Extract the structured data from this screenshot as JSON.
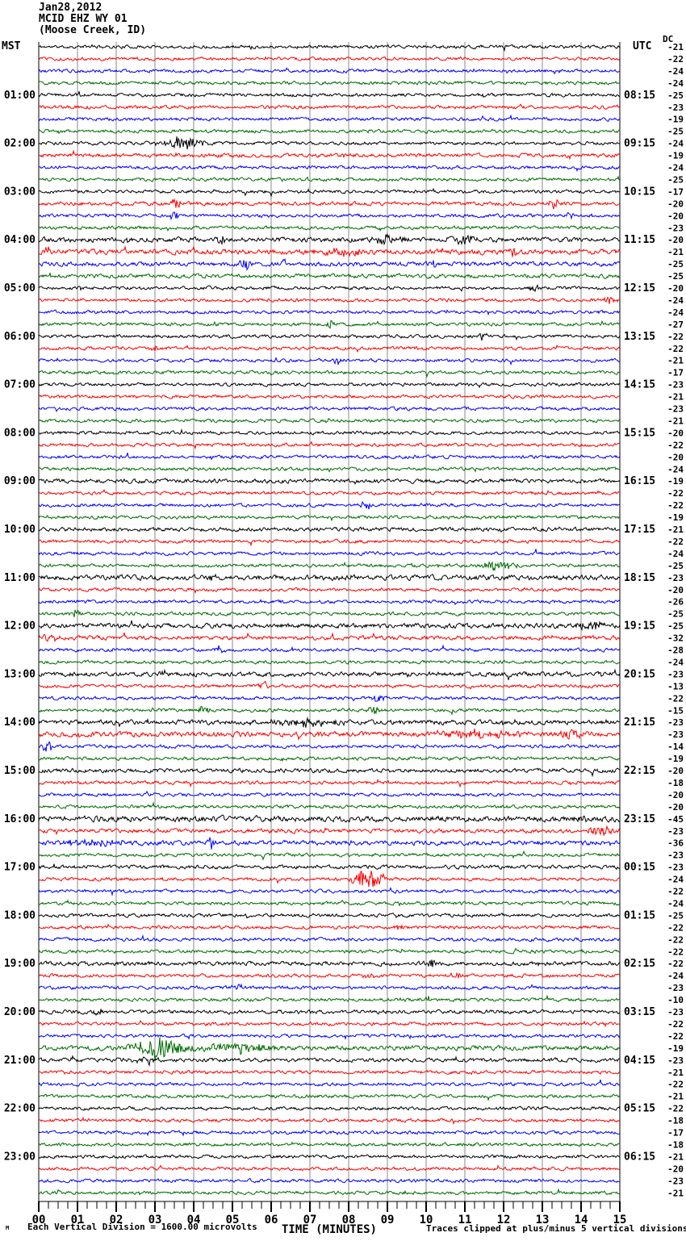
{
  "header": {
    "date": "Jan28,2012",
    "station": "MCID EHZ WY 01",
    "location": "(Moose Creek, ID)"
  },
  "axis_labels": {
    "left": "MST",
    "right": "UTC",
    "dc": "DC"
  },
  "x_axis": {
    "label": "TIME (MINUTES)",
    "ticks": [
      "00",
      "01",
      "02",
      "03",
      "04",
      "05",
      "06",
      "07",
      "08",
      "09",
      "10",
      "11",
      "12",
      "13",
      "14",
      "15"
    ]
  },
  "footer": {
    "corner_mark": "M",
    "scale_note": "Each Vertical Division = 1600.00 microvolts",
    "clip_note": "Traces clipped at plus/minus 5 vertical divisions"
  },
  "chart_data": {
    "type": "line",
    "subtype": "helicorder-seismogram",
    "title": "MCID EHZ WY 01 (Moose Creek, ID) Jan28,2012",
    "xlabel": "TIME (MINUTES)",
    "x_range": [
      0,
      15
    ],
    "rows": 96,
    "minutes_per_row": 15,
    "start_time_mst": "00:00",
    "colors_cycle": [
      "#000000",
      "#ff0000",
      "#0000ff",
      "#006c00"
    ],
    "grid_color": "#8a8a8a",
    "baseline_amp": 1.3,
    "scale_note_microvolts_per_division": 1600.0,
    "clip_divisions": 5,
    "dc_values": [
      -21,
      -22,
      -24,
      -24,
      -25,
      -23,
      -19,
      -25,
      -24,
      -19,
      -24,
      -25,
      -17,
      -20,
      -20,
      -23,
      -20,
      -21,
      -25,
      -25,
      -20,
      -24,
      -24,
      -27,
      -22,
      -22,
      -21,
      -17,
      -23,
      -21,
      -23,
      -21,
      -20,
      -22,
      -20,
      -24,
      -19,
      -22,
      -22,
      -19,
      -21,
      -22,
      -24,
      -25,
      -23,
      -20,
      -26,
      -25,
      -25,
      -32,
      -28,
      -24,
      -23,
      -13,
      -22,
      -15,
      -23,
      -23,
      -14,
      -19,
      -20,
      -18,
      -20,
      -20,
      -45,
      -23,
      -36,
      -23,
      -23,
      -24,
      -22,
      -24,
      -25,
      -22,
      -22,
      -22,
      -22,
      -24,
      -23,
      -10,
      -23,
      -22,
      -22,
      -19,
      -23,
      -21,
      -22,
      -21,
      -22,
      -18,
      -17,
      -18,
      -21,
      -20,
      -23,
      -21
    ],
    "mst_labels": [
      {
        "row": 4,
        "t": "01:00"
      },
      {
        "row": 8,
        "t": "02:00"
      },
      {
        "row": 12,
        "t": "03:00"
      },
      {
        "row": 16,
        "t": "04:00"
      },
      {
        "row": 20,
        "t": "05:00"
      },
      {
        "row": 24,
        "t": "06:00"
      },
      {
        "row": 28,
        "t": "07:00"
      },
      {
        "row": 32,
        "t": "08:00"
      },
      {
        "row": 36,
        "t": "09:00"
      },
      {
        "row": 40,
        "t": "10:00"
      },
      {
        "row": 44,
        "t": "11:00"
      },
      {
        "row": 48,
        "t": "12:00"
      },
      {
        "row": 52,
        "t": "13:00"
      },
      {
        "row": 56,
        "t": "14:00"
      },
      {
        "row": 60,
        "t": "15:00"
      },
      {
        "row": 64,
        "t": "16:00"
      },
      {
        "row": 68,
        "t": "17:00"
      },
      {
        "row": 72,
        "t": "18:00"
      },
      {
        "row": 76,
        "t": "19:00"
      },
      {
        "row": 80,
        "t": "20:00"
      },
      {
        "row": 84,
        "t": "21:00"
      },
      {
        "row": 88,
        "t": "22:00"
      },
      {
        "row": 92,
        "t": "23:00"
      }
    ],
    "utc_labels": [
      {
        "row": 4,
        "t": "08:15"
      },
      {
        "row": 8,
        "t": "09:15"
      },
      {
        "row": 12,
        "t": "10:15"
      },
      {
        "row": 16,
        "t": "11:15"
      },
      {
        "row": 20,
        "t": "12:15"
      },
      {
        "row": 24,
        "t": "13:15"
      },
      {
        "row": 28,
        "t": "14:15"
      },
      {
        "row": 32,
        "t": "15:15"
      },
      {
        "row": 36,
        "t": "16:15"
      },
      {
        "row": 40,
        "t": "17:15"
      },
      {
        "row": 44,
        "t": "18:15"
      },
      {
        "row": 48,
        "t": "19:15"
      },
      {
        "row": 52,
        "t": "20:15"
      },
      {
        "row": 56,
        "t": "21:15"
      },
      {
        "row": 60,
        "t": "22:15"
      },
      {
        "row": 64,
        "t": "23:15"
      },
      {
        "row": 68,
        "t": "00:15"
      },
      {
        "row": 72,
        "t": "01:15"
      },
      {
        "row": 76,
        "t": "02:15"
      },
      {
        "row": 80,
        "t": "03:15"
      },
      {
        "row": 84,
        "t": "04:15"
      },
      {
        "row": 88,
        "t": "05:15"
      },
      {
        "row": 92,
        "t": "06:15"
      }
    ],
    "amp_overrides": {
      "9": 1.5,
      "13": 1.5,
      "16": 1.9,
      "17": 2.0,
      "18": 1.7,
      "19": 1.6,
      "36": 1.6,
      "40": 1.5,
      "44": 2.0,
      "48": 1.8,
      "49": 1.6,
      "52": 1.8,
      "56": 1.8,
      "57": 2.0,
      "60": 1.6,
      "64": 2.2,
      "65": 1.6,
      "66": 1.8,
      "68": 1.5,
      "72": 1.4,
      "76": 1.6,
      "80": 1.5,
      "83": 1.8,
      "84": 1.5
    },
    "events": [
      [
        8,
        3.05,
        4.4,
        8
      ],
      [
        13,
        3.35,
        3.75,
        5
      ],
      [
        13,
        13.1,
        13.5,
        5
      ],
      [
        14,
        3.35,
        3.65,
        6
      ],
      [
        14,
        13.55,
        13.85,
        4
      ],
      [
        16,
        4.55,
        4.85,
        6
      ],
      [
        16,
        8.3,
        9.7,
        4.5
      ],
      [
        16,
        10.3,
        11.7,
        4.5
      ],
      [
        17,
        0.0,
        0.4,
        7
      ],
      [
        17,
        7.2,
        8.6,
        4.5
      ],
      [
        17,
        12.1,
        12.4,
        5
      ],
      [
        18,
        5.15,
        5.5,
        6
      ],
      [
        18,
        6.2,
        6.45,
        5
      ],
      [
        18,
        10.05,
        10.35,
        4
      ],
      [
        20,
        12.5,
        13.0,
        3.5
      ],
      [
        21,
        14.55,
        14.95,
        5
      ],
      [
        23,
        7.35,
        7.65,
        5
      ],
      [
        24,
        11.25,
        11.65,
        4
      ],
      [
        25,
        2.85,
        3.15,
        4
      ],
      [
        26,
        7.55,
        7.85,
        4
      ],
      [
        38,
        8.25,
        8.65,
        5
      ],
      [
        43,
        11.3,
        12.4,
        6.5
      ],
      [
        44,
        4.35,
        4.65,
        5
      ],
      [
        47,
        0.75,
        1.15,
        5
      ],
      [
        48,
        13.75,
        14.65,
        6.5
      ],
      [
        49,
        0.05,
        0.55,
        6
      ],
      [
        50,
        4.55,
        4.85,
        4
      ],
      [
        53,
        5.65,
        5.95,
        5
      ],
      [
        54,
        8.55,
        8.95,
        5
      ],
      [
        55,
        4.05,
        4.45,
        4.5
      ],
      [
        55,
        8.45,
        8.85,
        4.5
      ],
      [
        56,
        5.5,
        8.1,
        5
      ],
      [
        57,
        10.0,
        12.3,
        5
      ],
      [
        57,
        13.3,
        14.1,
        5.5
      ],
      [
        58,
        0.0,
        0.45,
        7
      ],
      [
        64,
        13.85,
        14.25,
        4.5
      ],
      [
        65,
        14.1,
        15.0,
        5.5
      ],
      [
        66,
        0.0,
        2.6,
        3.5
      ],
      [
        66,
        4.35,
        4.55,
        8
      ],
      [
        69,
        7.95,
        9.05,
        11
      ],
      [
        73,
        9.15,
        9.45,
        4
      ],
      [
        76,
        9.95,
        10.3,
        4
      ],
      [
        77,
        8.35,
        8.75,
        4.5
      ],
      [
        77,
        10.55,
        10.95,
        4
      ],
      [
        78,
        4.95,
        5.35,
        4
      ],
      [
        79,
        9.85,
        10.25,
        4
      ],
      [
        80,
        1.35,
        1.75,
        4.5
      ],
      [
        83,
        2.2,
        3.9,
        14
      ],
      [
        83,
        3.9,
        6.2,
        6
      ],
      [
        84,
        2.2,
        3.2,
        2.5
      ]
    ]
  }
}
